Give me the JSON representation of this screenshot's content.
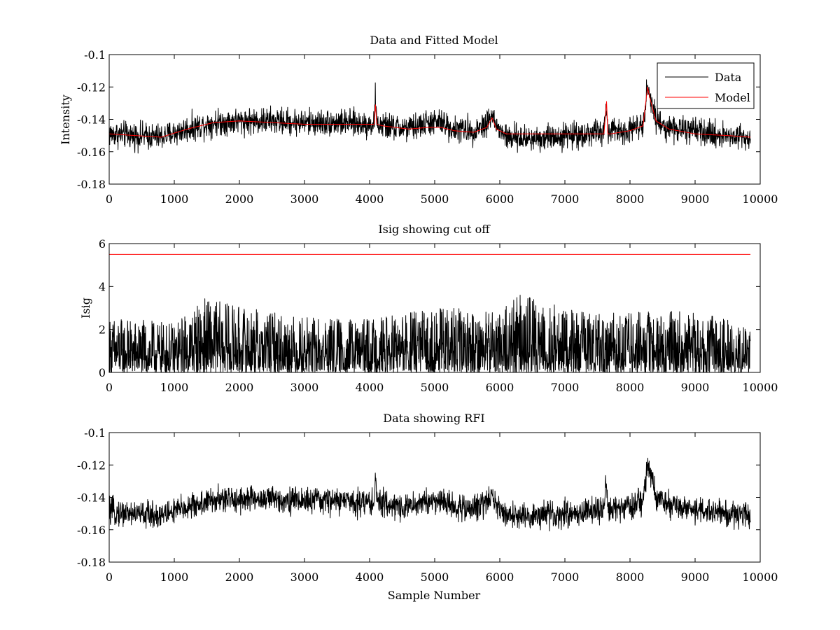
{
  "chart_data": [
    {
      "type": "line",
      "title": "Data and Fitted Model",
      "xlabel": "",
      "ylabel": "Intensity",
      "xlim": [
        0,
        10000
      ],
      "ylim": [
        -0.18,
        -0.1
      ],
      "xticks": [
        0,
        1000,
        2000,
        3000,
        4000,
        5000,
        6000,
        7000,
        8000,
        9000,
        10000
      ],
      "yticks": [
        -0.18,
        -0.16,
        -0.14,
        -0.12,
        -0.1
      ],
      "ytick_labels": [
        "-0.18",
        "-0.16",
        "-0.14",
        "-0.12",
        "-0.1"
      ],
      "legend_position": "top-right",
      "series": [
        {
          "name": "Data",
          "color": "#000000",
          "style": "noisy",
          "noise": 0.004,
          "x": [
            0,
            400,
            800,
            1200,
            1600,
            2000,
            2500,
            3000,
            3500,
            4000,
            4070,
            4090,
            4110,
            4200,
            4600,
            4900,
            5100,
            5300,
            5600,
            5800,
            5880,
            5950,
            6100,
            6400,
            7000,
            7300,
            7600,
            7640,
            7660,
            7700,
            8000,
            8200,
            8270,
            8300,
            8400,
            8600,
            9000,
            9500,
            9850
          ],
          "y": [
            -0.149,
            -0.15,
            -0.151,
            -0.146,
            -0.142,
            -0.141,
            -0.141,
            -0.142,
            -0.142,
            -0.143,
            -0.143,
            -0.125,
            -0.143,
            -0.144,
            -0.146,
            -0.142,
            -0.142,
            -0.146,
            -0.147,
            -0.142,
            -0.137,
            -0.145,
            -0.151,
            -0.152,
            -0.15,
            -0.149,
            -0.148,
            -0.13,
            -0.148,
            -0.148,
            -0.146,
            -0.142,
            -0.12,
            -0.124,
            -0.141,
            -0.145,
            -0.148,
            -0.15,
            -0.151
          ]
        },
        {
          "name": "Model",
          "color": "#ff0000",
          "style": "smooth",
          "x": [
            0,
            400,
            800,
            1200,
            1600,
            2000,
            2500,
            3000,
            3500,
            4000,
            4070,
            4090,
            4110,
            4200,
            4600,
            4900,
            5100,
            5300,
            5600,
            5800,
            5880,
            5950,
            6100,
            6400,
            7000,
            7300,
            7600,
            7640,
            7660,
            7700,
            8000,
            8200,
            8270,
            8300,
            8400,
            8600,
            9000,
            9500,
            9850
          ],
          "y": [
            -0.149,
            -0.15,
            -0.151,
            -0.146,
            -0.142,
            -0.141,
            -0.142,
            -0.143,
            -0.143,
            -0.143,
            -0.143,
            -0.131,
            -0.143,
            -0.144,
            -0.146,
            -0.145,
            -0.145,
            -0.147,
            -0.148,
            -0.145,
            -0.139,
            -0.146,
            -0.149,
            -0.149,
            -0.149,
            -0.149,
            -0.149,
            -0.129,
            -0.149,
            -0.149,
            -0.147,
            -0.144,
            -0.12,
            -0.126,
            -0.141,
            -0.146,
            -0.149,
            -0.15,
            -0.151
          ]
        }
      ]
    },
    {
      "type": "line",
      "title": "Isig showing cut off",
      "xlabel": "",
      "ylabel": "Isig",
      "xlim": [
        0,
        10000
      ],
      "ylim": [
        0,
        6
      ],
      "xticks": [
        0,
        1000,
        2000,
        3000,
        4000,
        5000,
        6000,
        7000,
        8000,
        9000,
        10000
      ],
      "yticks": [
        0,
        2,
        4,
        6
      ],
      "ytick_labels": [
        "0",
        "2",
        "4",
        "6"
      ],
      "series": [
        {
          "color": "#000000",
          "style": "isig",
          "x": [
            0,
            1000,
            1450,
            2000,
            3000,
            4000,
            5000,
            6000,
            6300,
            7000,
            8000,
            9000,
            9850
          ],
          "y": [
            2.6,
            2.3,
            3.5,
            3.1,
            2.6,
            2.5,
            3.0,
            3.0,
            3.7,
            3.0,
            2.8,
            2.9,
            2.2
          ]
        },
        {
          "color": "#ff0000",
          "style": "flat",
          "x": [
            0,
            9850
          ],
          "y": [
            5.5,
            5.5
          ]
        }
      ]
    },
    {
      "type": "line",
      "title": "Data showing RFI",
      "xlabel": "Sample Number",
      "ylabel": "",
      "xlim": [
        0,
        10000
      ],
      "ylim": [
        -0.18,
        -0.1
      ],
      "xticks": [
        0,
        1000,
        2000,
        3000,
        4000,
        5000,
        6000,
        7000,
        8000,
        9000,
        10000
      ],
      "yticks": [
        -0.18,
        -0.16,
        -0.14,
        -0.12,
        -0.1
      ],
      "ytick_labels": [
        "-0.18",
        "-0.16",
        "-0.14",
        "-0.12",
        "-0.1"
      ],
      "series": [
        {
          "color": "#000000",
          "style": "noisy",
          "noise": 0.004,
          "x": [
            0,
            400,
            800,
            1200,
            1600,
            2000,
            2500,
            3000,
            3500,
            4000,
            4070,
            4090,
            4110,
            4200,
            4600,
            4900,
            5100,
            5300,
            5600,
            5800,
            5880,
            5950,
            6100,
            6400,
            7000,
            7300,
            7600,
            7640,
            7660,
            7700,
            8000,
            8200,
            8270,
            8300,
            8400,
            8600,
            9000,
            9500,
            9850
          ],
          "y": [
            -0.149,
            -0.15,
            -0.151,
            -0.146,
            -0.142,
            -0.141,
            -0.141,
            -0.142,
            -0.142,
            -0.143,
            -0.143,
            -0.125,
            -0.143,
            -0.144,
            -0.146,
            -0.142,
            -0.142,
            -0.146,
            -0.147,
            -0.142,
            -0.137,
            -0.145,
            -0.151,
            -0.152,
            -0.15,
            -0.149,
            -0.148,
            -0.13,
            -0.148,
            -0.148,
            -0.146,
            -0.142,
            -0.12,
            -0.124,
            -0.141,
            -0.145,
            -0.148,
            -0.15,
            -0.151
          ]
        }
      ]
    }
  ]
}
